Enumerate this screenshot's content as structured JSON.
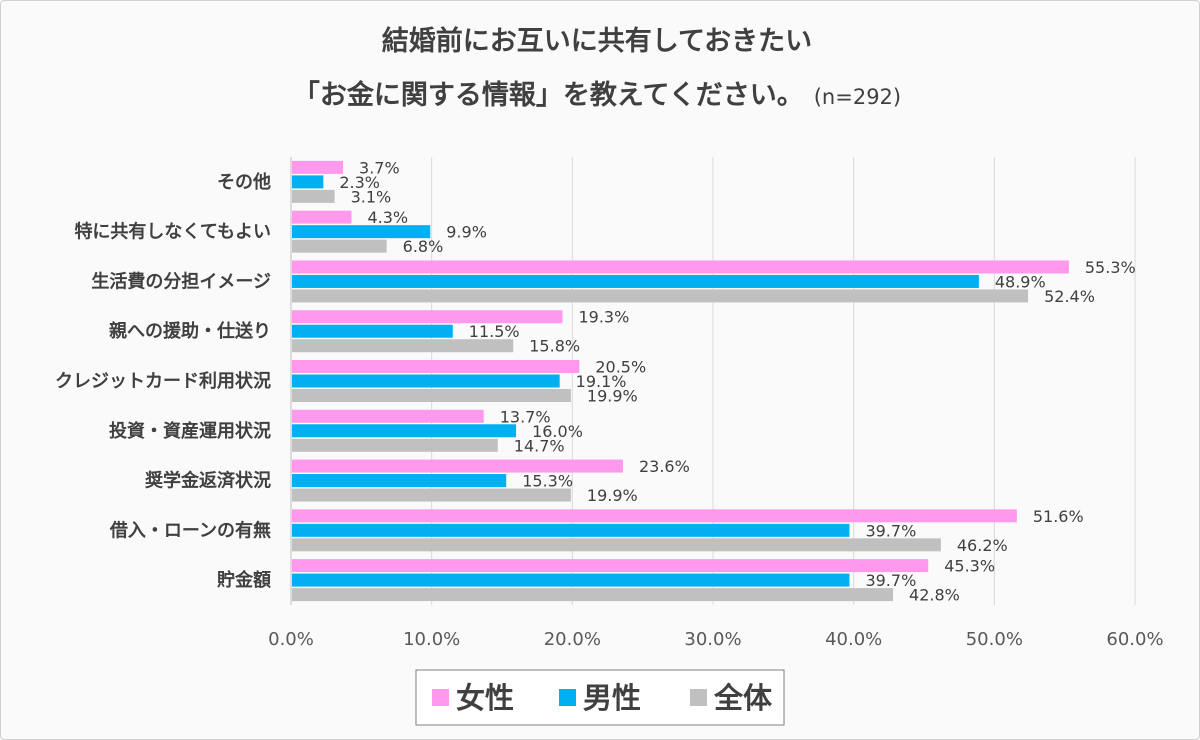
{
  "chart_data": {
    "type": "bar",
    "orientation": "horizontal",
    "title_line1": "結婚前にお互いに共有しておきたい",
    "title_line2": "「お金に関する情報」を教えてください。",
    "title_note": "(n=292)",
    "categories": [
      "その他",
      "特に共有しなくてもよい",
      "生活費の分担イメージ",
      "親への援助・仕送り",
      "クレジットカード利用状況",
      "投資・資産運用状況",
      "奨学金返済状況",
      "借入・ローンの有無",
      "貯金額"
    ],
    "series": [
      {
        "name": "女性",
        "color": "#FF99EE",
        "values": [
          3.7,
          4.3,
          55.3,
          19.3,
          20.5,
          13.7,
          23.6,
          51.6,
          45.3
        ],
        "labels": [
          "3.7%",
          "4.3%",
          "55.3%",
          "19.3%",
          "20.5%",
          "13.7%",
          "23.6%",
          "51.6%",
          "45.3%"
        ]
      },
      {
        "name": "男性",
        "color": "#00B0F0",
        "values": [
          2.3,
          9.9,
          48.9,
          11.5,
          19.1,
          16.0,
          15.3,
          39.7,
          39.7
        ],
        "labels": [
          "2.3%",
          "9.9%",
          "48.9%",
          "11.5%",
          "19.1%",
          "16.0%",
          "15.3%",
          "39.7%",
          "39.7%"
        ]
      },
      {
        "name": "全体",
        "color": "#C0C0C0",
        "values": [
          3.1,
          6.8,
          52.4,
          15.8,
          19.9,
          14.7,
          19.9,
          46.2,
          42.8
        ],
        "labels": [
          "3.1%",
          "6.8%",
          "52.4%",
          "15.8%",
          "19.9%",
          "14.7%",
          "19.9%",
          "46.2%",
          "42.8%"
        ]
      }
    ],
    "xlim": [
      0,
      60
    ],
    "x_ticks": [
      "0.0%",
      "10.0%",
      "20.0%",
      "30.0%",
      "40.0%",
      "50.0%",
      "60.0%"
    ],
    "grid": true,
    "legend_position": "bottom",
    "text_color": "#404040",
    "grid_color": "#D9D9D9"
  }
}
